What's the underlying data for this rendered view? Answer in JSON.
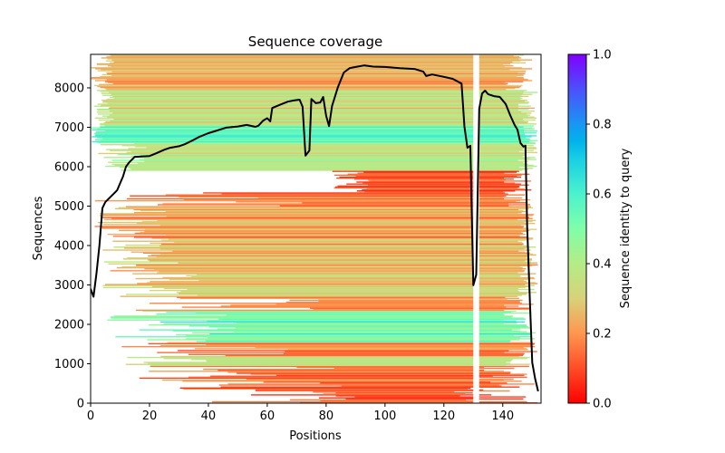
{
  "chart_data": {
    "type": "heatmap",
    "title": "Sequence coverage",
    "xlabel": "Positions",
    "ylabel": "Sequences",
    "xlim": [
      0,
      153
    ],
    "ylim": [
      0,
      8850
    ],
    "xticks": [
      0,
      20,
      40,
      60,
      80,
      100,
      120,
      140
    ],
    "yticks": [
      0,
      1000,
      2000,
      3000,
      4000,
      5000,
      6000,
      7000,
      8000
    ],
    "grid": false,
    "colorbar": {
      "label": "Sequence identity to query",
      "colormap": "rainbow_r",
      "range": [
        0,
        1
      ],
      "ticks": [
        0.0,
        0.2,
        0.4,
        0.6,
        0.8,
        1.0
      ],
      "tick_labels": [
        "0.0",
        "0.2",
        "0.4",
        "0.6",
        "0.8",
        "1.0"
      ],
      "stops": [
        {
          "v": 0.0,
          "color": "#ff0000"
        },
        {
          "v": 0.1,
          "color": "#ff4d27"
        },
        {
          "v": 0.2,
          "color": "#ff964f"
        },
        {
          "v": 0.3,
          "color": "#d8d27a"
        },
        {
          "v": 0.4,
          "color": "#b4ec86"
        },
        {
          "v": 0.5,
          "color": "#80ffa9"
        },
        {
          "v": 0.6,
          "color": "#4cf2cd"
        },
        {
          "v": 0.7,
          "color": "#19cfe4"
        },
        {
          "v": 0.75,
          "color": "#00b4eb"
        },
        {
          "v": 0.8,
          "color": "#1996f3"
        },
        {
          "v": 0.9,
          "color": "#4c50fc"
        },
        {
          "v": 1.0,
          "color": "#8000ff"
        }
      ]
    },
    "identity_bands": [
      {
        "y0": 0,
        "y1": 450,
        "identity": 0.12,
        "start_range": [
          30,
          95
        ],
        "end_range": [
          120,
          152
        ]
      },
      {
        "y0": 450,
        "y1": 950,
        "identity": 0.15,
        "start_range": [
          10,
          85
        ],
        "end_range": [
          125,
          152
        ]
      },
      {
        "y0": 950,
        "y1": 1200,
        "identity": 0.36,
        "start_range": [
          8,
          40
        ],
        "end_range": [
          140,
          152
        ]
      },
      {
        "y0": 1200,
        "y1": 1550,
        "identity": 0.16,
        "start_range": [
          5,
          70
        ],
        "end_range": [
          140,
          152
        ]
      },
      {
        "y0": 1550,
        "y1": 2350,
        "identity": 0.52,
        "start_range": [
          3,
          50
        ],
        "end_range": [
          140,
          152
        ]
      },
      {
        "y0": 2350,
        "y1": 2700,
        "identity": 0.2,
        "start_range": [
          10,
          80
        ],
        "end_range": [
          140,
          152
        ]
      },
      {
        "y0": 2700,
        "y1": 3300,
        "identity": 0.3,
        "start_range": [
          4,
          40
        ],
        "end_range": [
          145,
          152
        ]
      },
      {
        "y0": 3300,
        "y1": 5000,
        "identity": 0.24,
        "start_range": [
          1,
          30
        ],
        "end_range": [
          145,
          152
        ]
      },
      {
        "y0": 5000,
        "y1": 5350,
        "identity": 0.16,
        "start_range": [
          0,
          75
        ],
        "end_range": [
          140,
          150
        ]
      },
      {
        "y0": 5350,
        "y1": 5900,
        "identity": 0.11,
        "start_range": [
          82,
          95
        ],
        "end_range": [
          140,
          150
        ]
      },
      {
        "y0": 5900,
        "y1": 6600,
        "identity": 0.37,
        "start_range": [
          1,
          20
        ],
        "end_range": [
          145,
          152
        ]
      },
      {
        "y0": 6600,
        "y1": 7050,
        "identity": 0.56,
        "start_range": [
          0,
          5
        ],
        "end_range": [
          147,
          152
        ]
      },
      {
        "y0": 7050,
        "y1": 7950,
        "identity": 0.36,
        "start_range": [
          1,
          8
        ],
        "end_range": [
          145,
          152
        ]
      },
      {
        "y0": 7950,
        "y1": 8850,
        "identity": 0.25,
        "start_range": [
          0,
          8
        ],
        "end_range": [
          140,
          150
        ]
      }
    ],
    "gap_columns": [
      [
        130,
        132
      ]
    ],
    "coverage": {
      "name": "Coverage",
      "color": "#000000",
      "x": [
        0,
        1,
        2,
        3,
        4,
        5,
        7,
        9,
        11,
        12,
        13,
        15,
        17,
        20,
        22,
        25,
        27,
        30,
        32,
        35,
        37,
        40,
        43,
        46,
        50,
        53,
        56,
        57,
        58.6,
        60,
        61,
        61.7,
        64,
        67,
        69,
        71,
        72,
        73,
        74.3,
        75,
        76.5,
        78,
        79,
        80,
        81,
        82,
        84,
        86,
        88,
        90,
        93,
        96,
        100,
        105,
        110,
        113,
        114,
        116,
        120,
        123,
        126,
        127,
        128,
        129,
        130,
        131,
        132,
        133,
        134,
        135,
        137,
        139,
        141,
        142.5,
        144,
        145,
        146,
        147,
        147.7,
        148.3,
        149.3,
        150,
        151,
        152
      ],
      "y": [
        2900,
        2700,
        3300,
        4000,
        4950,
        5100,
        5250,
        5400,
        5750,
        6000,
        6100,
        6250,
        6260,
        6270,
        6330,
        6430,
        6480,
        6520,
        6570,
        6680,
        6760,
        6850,
        6920,
        6990,
        7020,
        7060,
        7010,
        7040,
        7170,
        7230,
        7150,
        7490,
        7560,
        7650,
        7680,
        7700,
        7520,
        6280,
        6410,
        7720,
        7610,
        7630,
        7770,
        7290,
        7030,
        7540,
        8020,
        8390,
        8500,
        8530,
        8570,
        8540,
        8530,
        8500,
        8480,
        8410,
        8300,
        8340,
        8280,
        8230,
        8110,
        7010,
        6480,
        6530,
        2990,
        3260,
        7470,
        7860,
        7930,
        7840,
        7790,
        7770,
        7590,
        7310,
        7060,
        6940,
        6600,
        6510,
        6530,
        4480,
        2410,
        1030,
        620,
        300
      ]
    }
  }
}
